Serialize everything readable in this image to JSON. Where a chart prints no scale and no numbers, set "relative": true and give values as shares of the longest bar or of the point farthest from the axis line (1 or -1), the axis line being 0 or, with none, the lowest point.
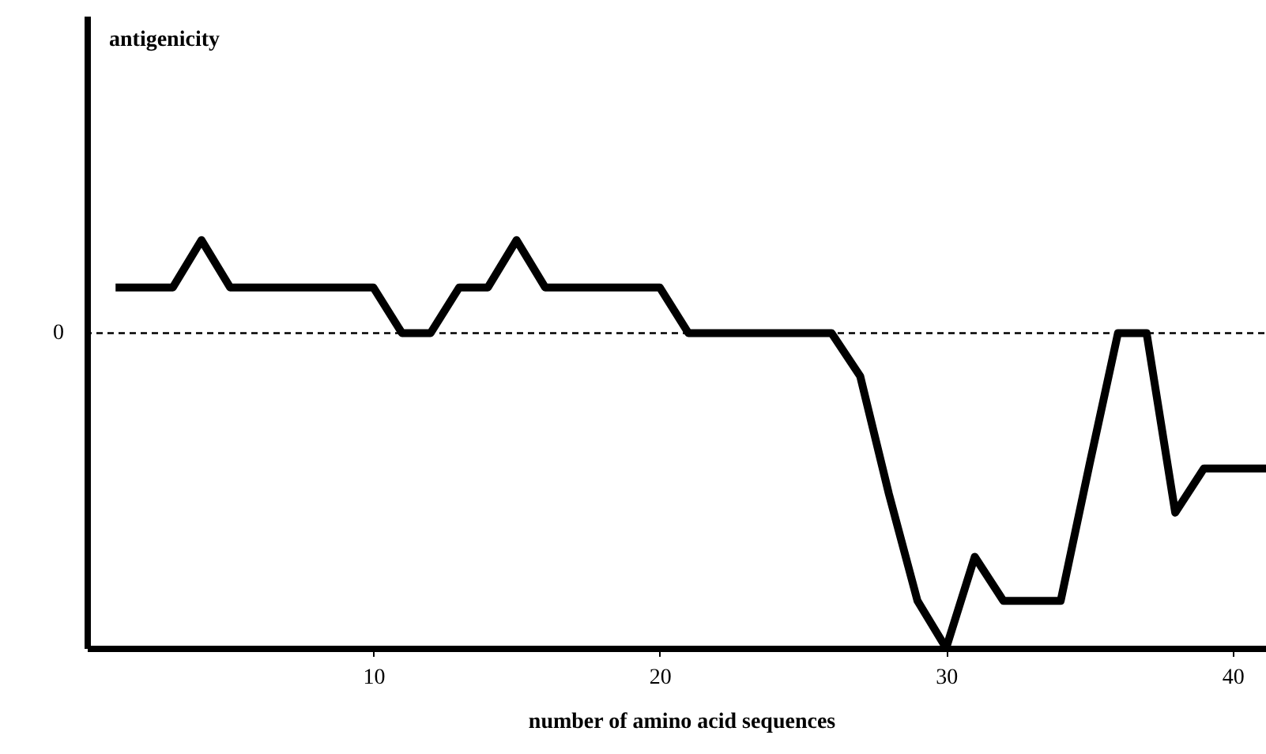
{
  "chart_data": {
    "type": "line",
    "relative": true,
    "annotations": [
      "antigenicity"
    ],
    "xlabel": "number of amino acid sequences",
    "x": [
      1,
      3,
      4,
      5,
      10,
      11,
      12,
      13,
      14,
      15,
      16,
      20,
      21,
      26,
      27,
      28,
      29,
      30,
      31,
      32,
      34,
      35,
      36,
      37,
      38,
      39,
      41.5
    ],
    "series": [
      {
        "color": "#000000",
        "values": [
          0.145,
          0.145,
          0.295,
          0.145,
          0.145,
          0,
          0,
          0.145,
          0.145,
          0.295,
          0.145,
          0.145,
          0,
          0,
          -0.137,
          -0.51,
          -0.85,
          -1,
          -0.71,
          -0.85,
          -0.85,
          -0.42,
          0,
          0,
          -0.57,
          -0.43,
          -0.43
        ]
      }
    ],
    "xlim": [
      0,
      41.5
    ],
    "xticks": [
      10,
      20,
      30,
      40
    ],
    "grid": false,
    "legend": false,
    "marker": "none",
    "line_style": "solid",
    "ref_lines": [
      {
        "axis": "y",
        "value": 0,
        "label": "0",
        "line_style": "dashed",
        "color": "#000000"
      }
    ]
  }
}
